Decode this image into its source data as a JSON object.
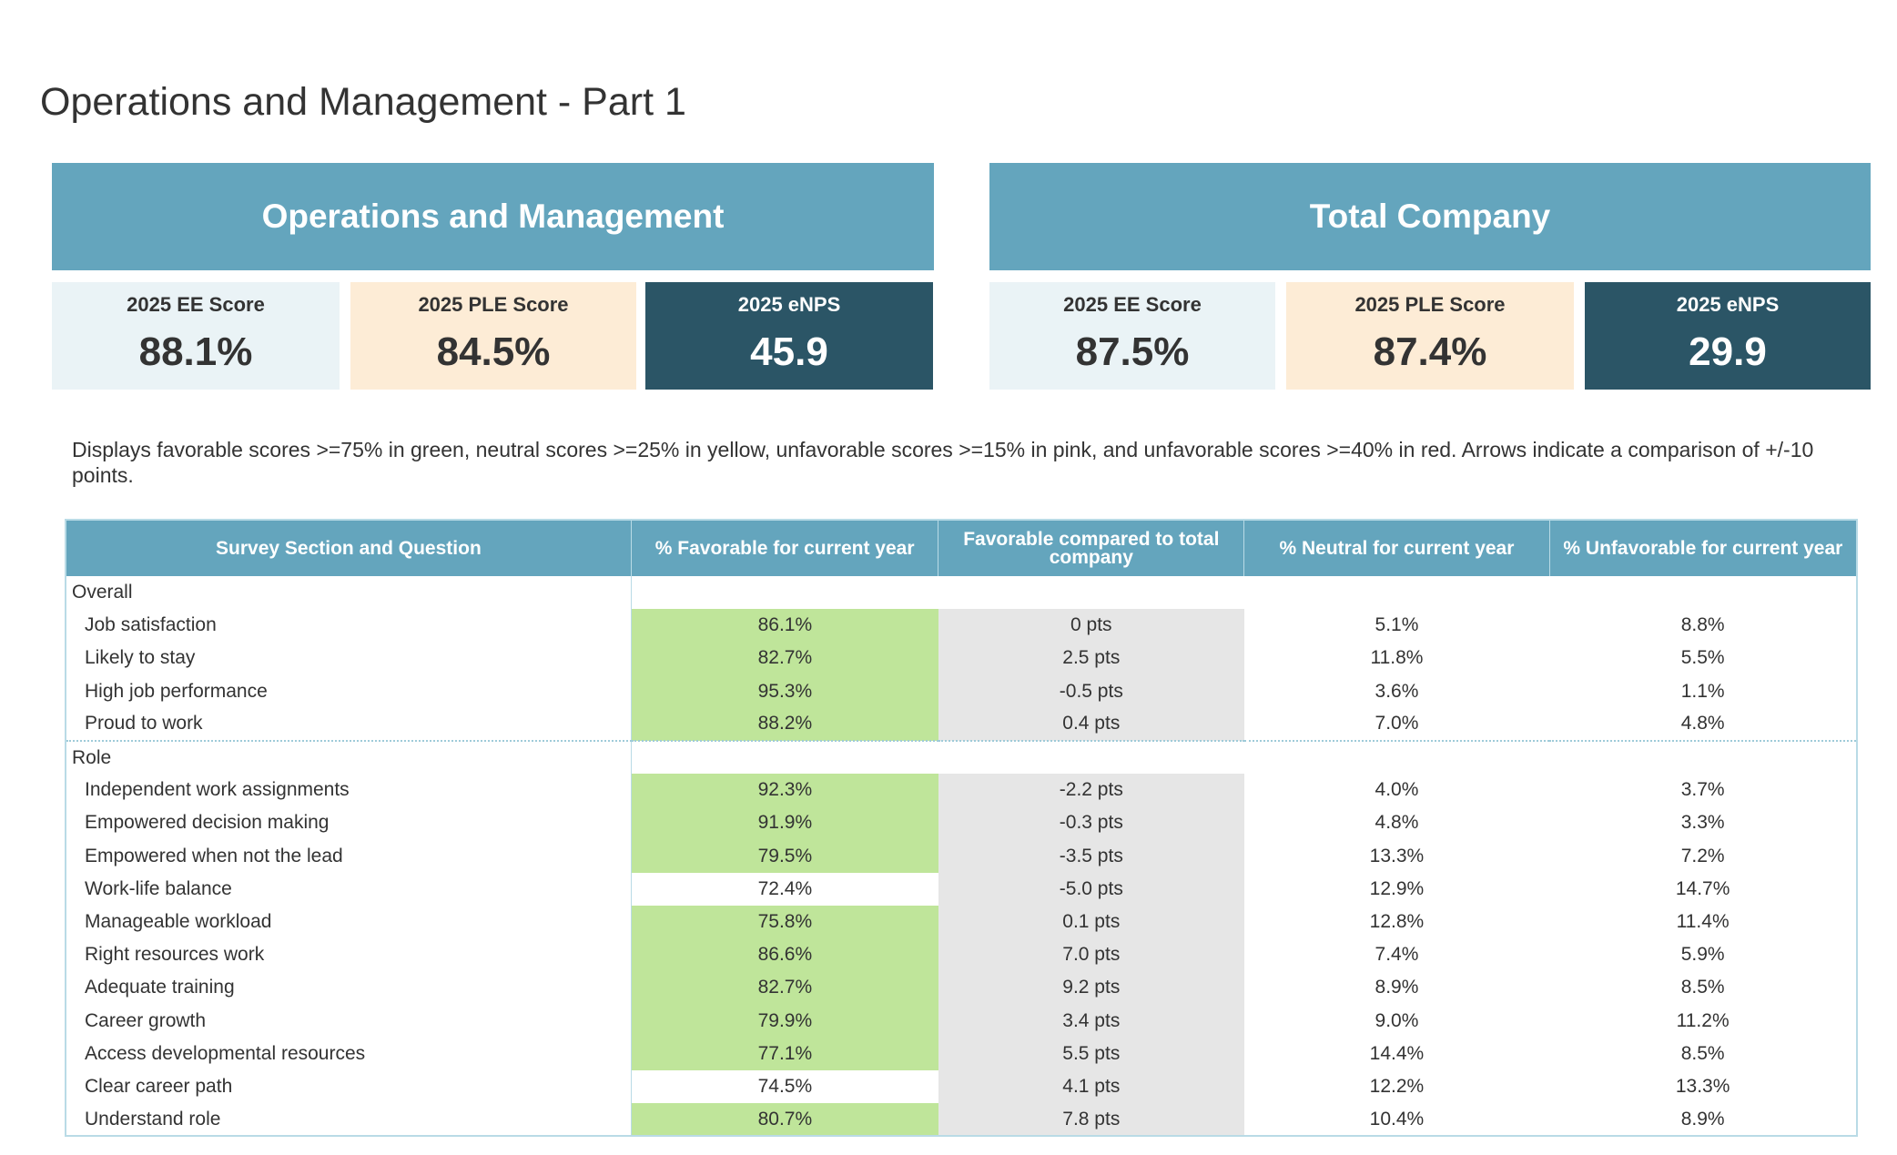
{
  "page_title": "Operations and Management - Part 1",
  "colors": {
    "header": "#64a5bd",
    "dark": "#2b5566",
    "light": "#eaf3f6",
    "peach": "#fdecd6",
    "favorable_green": "#bfe59a",
    "compare_grey": "#e6e6e6"
  },
  "group": {
    "title": "Operations and Management",
    "ee_label": "2025 EE Score",
    "ee": "88.1%",
    "ple_label": "2025 PLE Score",
    "ple": "84.5%",
    "enps_label": "2025 eNPS",
    "enps": "45.9"
  },
  "company": {
    "title": "Total Company",
    "ee_label": "2025 EE Score",
    "ee": "87.5%",
    "ple_label": "2025 PLE Score",
    "ple": "87.4%",
    "enps_label": "2025 eNPS",
    "enps": "29.9"
  },
  "note": "Displays favorable scores >=75% in green, neutral scores >=25% in yellow, unfavorable scores >=15% in pink, and unfavorable scores >=40% in red. Arrows indicate a comparison of +/-10 points.",
  "table": {
    "headers": [
      "Survey Section and Question",
      "% Favorable for current year",
      "Favorable compared to total company",
      "% Neutral for current year",
      "% Unfavorable for current year"
    ],
    "sections": [
      {
        "name": "Overall",
        "rows": [
          {
            "q": "Job satisfaction",
            "fav": "86.1%",
            "green": true,
            "cmp": "0 pts",
            "neu": "5.1%",
            "unf": "8.8%"
          },
          {
            "q": "Likely to stay",
            "fav": "82.7%",
            "green": true,
            "cmp": "2.5 pts",
            "neu": "11.8%",
            "unf": "5.5%"
          },
          {
            "q": "High job performance",
            "fav": "95.3%",
            "green": true,
            "cmp": "-0.5 pts",
            "neu": "3.6%",
            "unf": "1.1%"
          },
          {
            "q": "Proud to work",
            "fav": "88.2%",
            "green": true,
            "cmp": "0.4 pts",
            "neu": "7.0%",
            "unf": "4.8%"
          }
        ]
      },
      {
        "name": "Role",
        "rows": [
          {
            "q": "Independent work assignments",
            "fav": "92.3%",
            "green": true,
            "cmp": "-2.2 pts",
            "neu": "4.0%",
            "unf": "3.7%"
          },
          {
            "q": "Empowered decision making",
            "fav": "91.9%",
            "green": true,
            "cmp": "-0.3 pts",
            "neu": "4.8%",
            "unf": "3.3%"
          },
          {
            "q": "Empowered when not the lead",
            "fav": "79.5%",
            "green": true,
            "cmp": "-3.5 pts",
            "neu": "13.3%",
            "unf": "7.2%"
          },
          {
            "q": "Work-life balance",
            "fav": "72.4%",
            "green": false,
            "cmp": "-5.0 pts",
            "neu": "12.9%",
            "unf": "14.7%"
          },
          {
            "q": "Manageable workload",
            "fav": "75.8%",
            "green": true,
            "cmp": "0.1 pts",
            "neu": "12.8%",
            "unf": "11.4%"
          },
          {
            "q": "Right resources work",
            "fav": "86.6%",
            "green": true,
            "cmp": "7.0 pts",
            "neu": "7.4%",
            "unf": "5.9%"
          },
          {
            "q": "Adequate training",
            "fav": "82.7%",
            "green": true,
            "cmp": "9.2 pts",
            "neu": "8.9%",
            "unf": "8.5%"
          },
          {
            "q": "Career growth",
            "fav": "79.9%",
            "green": true,
            "cmp": "3.4 pts",
            "neu": "9.0%",
            "unf": "11.2%"
          },
          {
            "q": "Access developmental resources",
            "fav": "77.1%",
            "green": true,
            "cmp": "5.5 pts",
            "neu": "14.4%",
            "unf": "8.5%"
          },
          {
            "q": "Clear career path",
            "fav": "74.5%",
            "green": false,
            "cmp": "4.1 pts",
            "neu": "12.2%",
            "unf": "13.3%"
          },
          {
            "q": "Understand role",
            "fav": "80.7%",
            "green": true,
            "cmp": "7.8 pts",
            "neu": "10.4%",
            "unf": "8.9%"
          }
        ]
      }
    ]
  }
}
